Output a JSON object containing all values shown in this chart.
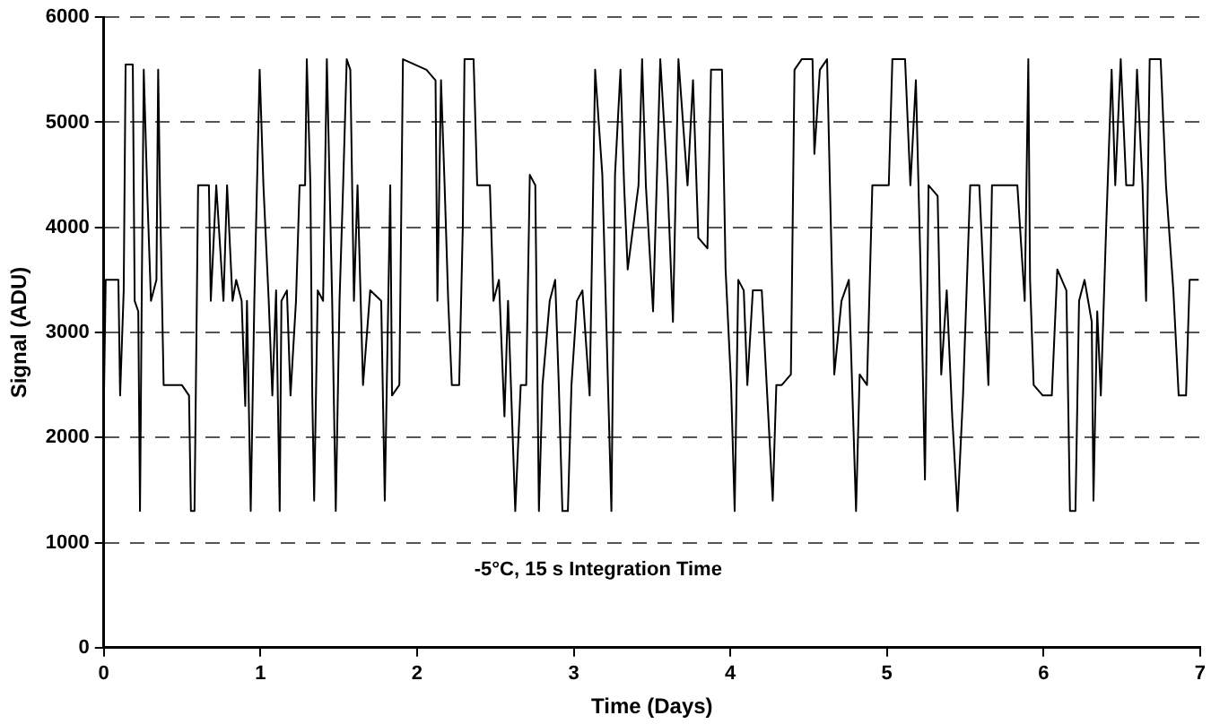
{
  "chart_data": {
    "type": "line",
    "xlabel": "Time (Days)",
    "ylabel": "Signal (ADU)",
    "annotations": [
      "-5°C, 15 s Integration Time"
    ],
    "xlim": [
      0,
      7
    ],
    "xticks": [
      0,
      1,
      2,
      3,
      4,
      5,
      6,
      7
    ],
    "ylim": [
      0,
      6000
    ],
    "yticks": [
      0,
      1000,
      2000,
      3000,
      4000,
      5000,
      6000
    ],
    "grid": "y",
    "legend": false,
    "marker": "none",
    "line_style": "solid",
    "series": [
      {
        "color": "#000000",
        "x": [
          0,
          0.012,
          0.093,
          0.104,
          0.127,
          0.139,
          0.185,
          0.197,
          0.22,
          0.231,
          0.243,
          0.255,
          0.278,
          0.301,
          0.336,
          0.347,
          0.359,
          0.382,
          0.498,
          0.544,
          0.556,
          0.579,
          0.602,
          0.671,
          0.683,
          0.718,
          0.764,
          0.787,
          0.822,
          0.845,
          0.88,
          0.903,
          0.914,
          0.938,
          0.961,
          0.995,
          1.019,
          1.053,
          1.076,
          1.1,
          1.123,
          1.134,
          1.169,
          1.192,
          1.227,
          1.25,
          1.285,
          1.296,
          1.319,
          1.331,
          1.343,
          1.366,
          1.4,
          1.424,
          1.458,
          1.481,
          1.505,
          1.528,
          1.551,
          1.574,
          1.597,
          1.62,
          1.655,
          1.701,
          1.771,
          1.794,
          1.829,
          1.84,
          1.887,
          1.91,
          2.06,
          2.118,
          2.13,
          2.153,
          2.176,
          2.199,
          2.222,
          2.269,
          2.292,
          2.303,
          2.361,
          2.384,
          2.465,
          2.488,
          2.523,
          2.558,
          2.581,
          2.627,
          2.662,
          2.697,
          2.72,
          2.755,
          2.778,
          2.801,
          2.847,
          2.882,
          2.905,
          2.928,
          2.963,
          2.986,
          3.021,
          3.056,
          3.102,
          3.137,
          3.183,
          3.241,
          3.264,
          3.299,
          3.322,
          3.345,
          3.414,
          3.437,
          3.461,
          3.507,
          3.553,
          3.6,
          3.634,
          3.669,
          3.727,
          3.762,
          3.796,
          3.854,
          3.877,
          3.947,
          3.97,
          4.005,
          4.028,
          4.051,
          4.086,
          4.109,
          4.144,
          4.201,
          4.236,
          4.271,
          4.294,
          4.329,
          4.387,
          4.41,
          4.456,
          4.525,
          4.537,
          4.572,
          4.618,
          4.664,
          4.71,
          4.757,
          4.78,
          4.803,
          4.826,
          4.873,
          4.907,
          5.012,
          5.035,
          5.116,
          5.15,
          5.185,
          5.22,
          5.243,
          5.266,
          5.324,
          5.347,
          5.382,
          5.417,
          5.451,
          5.486,
          5.532,
          5.59,
          5.648,
          5.671,
          5.764,
          5.833,
          5.88,
          5.903,
          5.914,
          5.937,
          5.995,
          6.053,
          6.088,
          6.146,
          6.169,
          6.204,
          6.227,
          6.262,
          6.308,
          6.319,
          6.343,
          6.366,
          6.4,
          6.435,
          6.458,
          6.493,
          6.528,
          6.574,
          6.597,
          6.632,
          6.655,
          6.678,
          6.748,
          6.782,
          6.829,
          6.863,
          6.91,
          6.933,
          6.991
        ],
        "values": [
          2300,
          3500,
          3500,
          2400,
          3400,
          5550,
          5550,
          3300,
          3200,
          1300,
          3500,
          5500,
          4300,
          3300,
          3500,
          5500,
          4300,
          2500,
          2500,
          2400,
          1300,
          1300,
          4400,
          4400,
          3300,
          4400,
          3300,
          4400,
          3300,
          3500,
          3300,
          2300,
          3300,
          1300,
          3300,
          5500,
          4400,
          3300,
          2400,
          3400,
          1300,
          3300,
          3400,
          2400,
          3300,
          4400,
          4400,
          5600,
          4400,
          2400,
          1400,
          3400,
          3300,
          5600,
          3300,
          1300,
          3300,
          4400,
          5600,
          5500,
          3300,
          4400,
          2500,
          3400,
          3300,
          1400,
          4400,
          2400,
          2500,
          5600,
          5500,
          5400,
          3300,
          5400,
          4400,
          3300,
          2500,
          2500,
          4000,
          5600,
          5600,
          4400,
          4400,
          3300,
          3500,
          2200,
          3300,
          1300,
          2500,
          2500,
          4500,
          4400,
          1300,
          2500,
          3300,
          3500,
          2500,
          1300,
          1300,
          2500,
          3300,
          3400,
          2400,
          5500,
          4500,
          1300,
          4500,
          5500,
          4400,
          3600,
          4400,
          5600,
          4400,
          3200,
          5600,
          4400,
          3100,
          5600,
          4400,
          5400,
          3900,
          3800,
          5500,
          5500,
          3600,
          2500,
          1300,
          3500,
          3400,
          2500,
          3400,
          3400,
          2400,
          1400,
          2500,
          2500,
          2600,
          5500,
          5600,
          5600,
          4700,
          5500,
          5600,
          2600,
          3300,
          3500,
          2400,
          1300,
          2600,
          2500,
          4400,
          4400,
          5600,
          5600,
          4400,
          5400,
          3300,
          1600,
          4400,
          4300,
          2600,
          3400,
          2200,
          1300,
          2400,
          4400,
          4400,
          2500,
          4400,
          4400,
          4400,
          3300,
          5600,
          3500,
          2500,
          2400,
          2400,
          3600,
          3400,
          1300,
          1300,
          3300,
          3500,
          3100,
          1400,
          3200,
          2400,
          4000,
          5500,
          4400,
          5600,
          4400,
          4400,
          5500,
          4400,
          3300,
          5600,
          5600,
          4400,
          3400,
          2400,
          2400,
          3500,
          3500
        ]
      }
    ]
  }
}
